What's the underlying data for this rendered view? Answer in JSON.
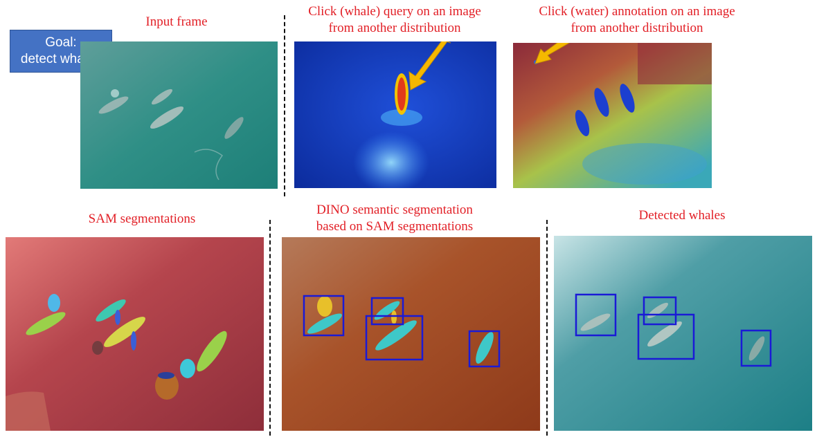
{
  "goal": {
    "line1": "Goal:",
    "line2": "detect whales"
  },
  "top_row": {
    "input_frame": {
      "caption": "Input frame"
    },
    "whale_query": {
      "caption_line1": "Click (whale) query on an image",
      "caption_line2": "from another distribution"
    },
    "water_annotation": {
      "caption_line1": "Click (water) annotation on an image",
      "caption_line2": "from another distribution"
    }
  },
  "bottom_row": {
    "sam": {
      "caption": "SAM segmentations"
    },
    "dino": {
      "caption_line1": "DINO semantic segmentation",
      "caption_line2": "based on SAM  segmentations"
    },
    "detected": {
      "caption": "Detected whales"
    }
  },
  "colors": {
    "caption_red": "#e21f26",
    "goal_blue": "#4472c4",
    "box_blue": "#1a1ad6",
    "arrow_orange": "#f5b800"
  }
}
